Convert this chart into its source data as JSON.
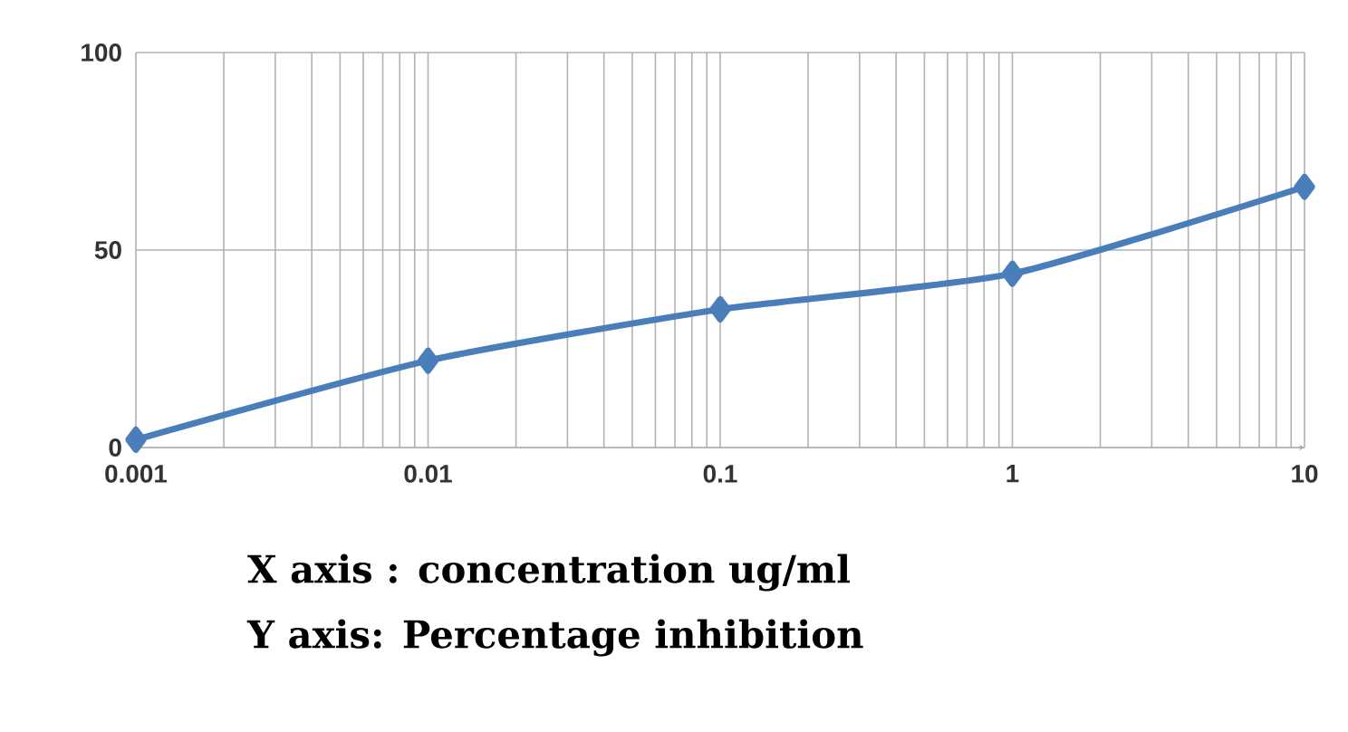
{
  "chart_data": {
    "type": "line",
    "x": [
      0.001,
      0.01,
      0.1,
      1,
      10
    ],
    "series": [
      {
        "color": "#4a7ebb",
        "values": [
          2,
          22,
          35,
          44,
          66
        ]
      }
    ],
    "log": "x",
    "xlim": [
      0.001,
      10
    ],
    "ylim": [
      0,
      100
    ],
    "xticks": [
      0.001,
      0.01,
      0.1,
      1,
      10
    ],
    "yticks": [
      0,
      50,
      100
    ],
    "grid": true,
    "marker": "diamond",
    "line_style": "solid",
    "annotations": [
      "X axis : concentration ug/ml",
      "Y axis: Percentage inhibition"
    ]
  }
}
